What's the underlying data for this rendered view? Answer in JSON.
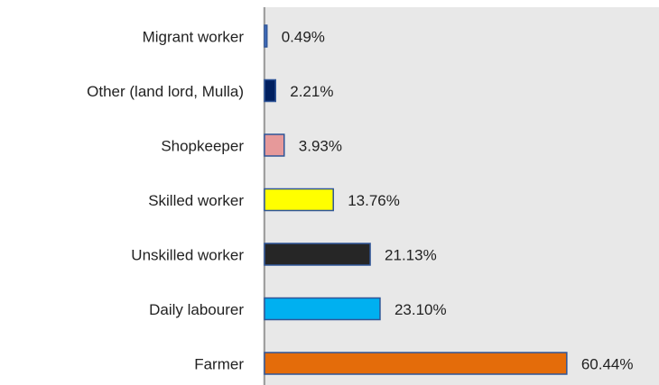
{
  "chart_data": {
    "type": "barh",
    "categories": [
      "Migrant worker",
      "Other (land lord, Mulla)",
      "Shopkeeper",
      "Skilled worker",
      "Unskilled worker",
      "Daily labourer",
      "Farmer"
    ],
    "values": [
      0.49,
      2.21,
      3.93,
      13.76,
      21.13,
      23.1,
      60.44
    ],
    "value_labels": [
      "0.49%",
      "2.21%",
      "3.93%",
      "13.76%",
      "21.13%",
      "23.10%",
      "60.44%"
    ],
    "colors": [
      "#4472c4",
      "#002060",
      "#e6999a",
      "#ffff00",
      "#262626",
      "#00b0f0",
      "#e46c0a"
    ]
  }
}
